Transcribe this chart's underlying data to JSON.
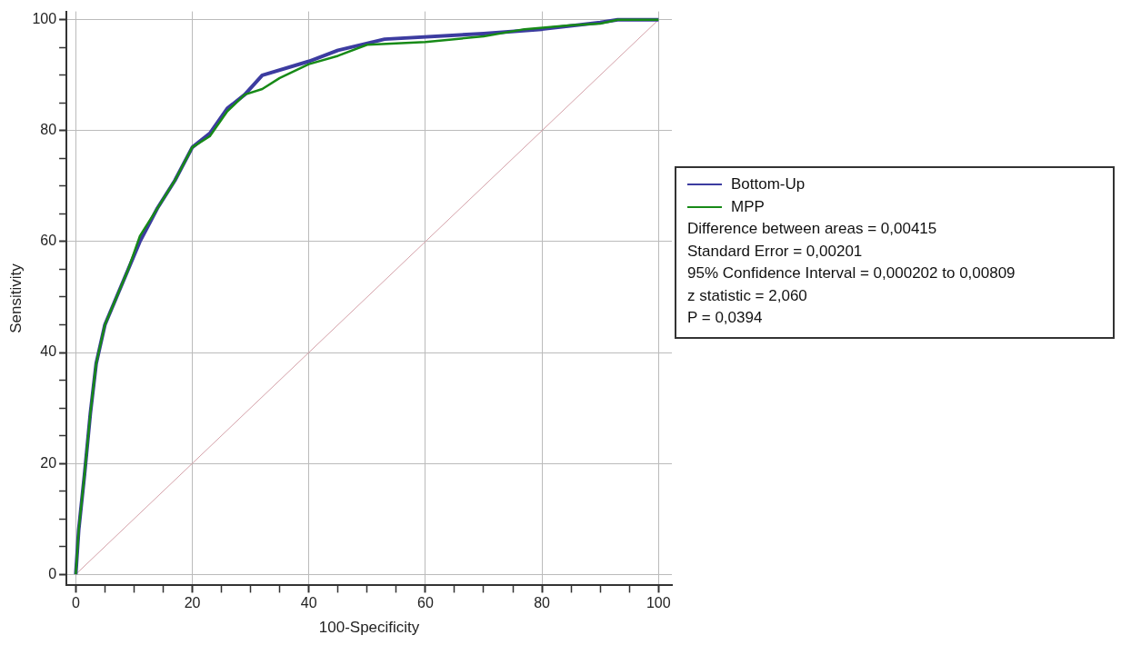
{
  "chart_data": {
    "type": "line",
    "xlabel": "100-Specificity",
    "ylabel": "Sensitivity",
    "xlim": [
      -1.6,
      102.3
    ],
    "ylim": [
      -2,
      101.5
    ],
    "xticks": [
      0,
      {
        "value": 5,
        "label": null
      },
      {
        "value": 10,
        "label": null
      },
      {
        "value": 15,
        "label": null
      },
      20,
      {
        "value": 25,
        "label": null
      },
      {
        "value": 30,
        "label": null
      },
      {
        "value": 35,
        "label": null
      },
      40,
      {
        "value": 45,
        "label": null
      },
      {
        "value": 50,
        "label": null
      },
      {
        "value": 55,
        "label": null
      },
      60,
      {
        "value": 65,
        "label": null
      },
      {
        "value": 70,
        "label": null
      },
      {
        "value": 75,
        "label": null
      },
      80,
      {
        "value": 85,
        "label": null
      },
      {
        "value": 90,
        "label": null
      },
      {
        "value": 95,
        "label": null
      },
      100
    ],
    "yticks": [
      0,
      {
        "value": 5,
        "label": null
      },
      {
        "value": 10,
        "label": null
      },
      {
        "value": 15,
        "label": null
      },
      20,
      {
        "value": 25,
        "label": null
      },
      {
        "value": 30,
        "label": null
      },
      {
        "value": 35,
        "label": null
      },
      40,
      {
        "value": 45,
        "label": null
      },
      {
        "value": 50,
        "label": null
      },
      {
        "value": 55,
        "label": null
      },
      60,
      {
        "value": 65,
        "label": null
      },
      {
        "value": 70,
        "label": null
      },
      {
        "value": 75,
        "label": null
      },
      80,
      {
        "value": 85,
        "label": null
      },
      {
        "value": 90,
        "label": null
      },
      {
        "value": 95,
        "label": null
      },
      100
    ],
    "grid": true,
    "legend": "right",
    "marker": "none",
    "series": [
      {
        "name": "Bottom-Up",
        "color": "#3c3ca0",
        "x": [
          0,
          0.5,
          1.5,
          2.5,
          3.5,
          5,
          7,
          9,
          11,
          14,
          17,
          20,
          23,
          26,
          29,
          32,
          40,
          45,
          53,
          70,
          80,
          90,
          93,
          100
        ],
        "values": [
          0,
          8,
          18,
          29,
          38,
          45,
          50,
          55,
          60,
          66,
          71,
          77,
          79.5,
          84,
          86.5,
          90,
          92.5,
          94.5,
          96.5,
          97.5,
          98.3,
          99.5,
          100,
          100
        ]
      },
      {
        "name": "MPP",
        "color": "#178a17",
        "x": [
          0,
          0.5,
          1.5,
          2.5,
          3.5,
          5,
          7,
          9,
          11,
          14,
          17,
          20,
          23,
          26,
          29,
          32,
          35,
          40,
          45,
          50,
          60,
          70,
          77,
          85,
          90,
          93,
          100
        ],
        "values": [
          0,
          8,
          18,
          29,
          38,
          45,
          50,
          55,
          61,
          66,
          71,
          77,
          79,
          83.5,
          86.5,
          87.5,
          89.5,
          92,
          93.5,
          95.5,
          96,
          97,
          98.3,
          99,
          99.3,
          100,
          100
        ]
      },
      {
        "color": "#d4a0a8",
        "x": [
          0,
          100
        ],
        "values": [
          0,
          100
        ]
      }
    ],
    "annotations": [
      "Difference between areas = 0,00415",
      "Standard Error = 0,00201",
      "95% Confidence Interval = 0,000202 to 0,00809",
      "z statistic = 2,060",
      "P = 0,0394"
    ]
  }
}
